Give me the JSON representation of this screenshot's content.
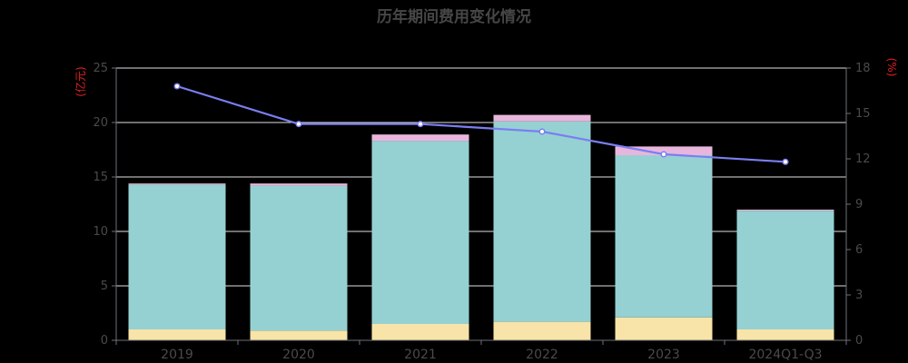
{
  "chart_data": {
    "type": "bar",
    "title": "历年期间费用变化情况",
    "left_unit": "(亿元)",
    "right_unit": "(%)",
    "categories": [
      "2019",
      "2020",
      "2021",
      "2022",
      "2023",
      "2024Q1-Q3"
    ],
    "stacked": true,
    "series": [
      {
        "values": [
          1.0,
          0.9,
          1.5,
          1.7,
          2.1,
          1.0
        ],
        "color": "#f8e4a8"
      },
      {
        "values": [
          13.3,
          13.3,
          16.8,
          18.4,
          14.9,
          10.9
        ],
        "color": "#95d1d2"
      },
      {
        "values": [
          0.1,
          0.2,
          0.6,
          0.6,
          0.8,
          0.1
        ],
        "color": "#e8b6dc"
      }
    ],
    "line_series": {
      "values": [
        16.8,
        14.3,
        14.3,
        13.8,
        12.3,
        11.8
      ],
      "color": "#7b7ef2"
    },
    "ylim_left": [
      0,
      25
    ],
    "yticks_left": [
      0,
      5,
      10,
      15,
      20,
      25
    ],
    "ylim_right": [
      0,
      18
    ],
    "yticks_right": [
      0,
      3,
      6,
      9,
      12,
      15,
      18
    ],
    "grid": true,
    "legend": "none"
  }
}
